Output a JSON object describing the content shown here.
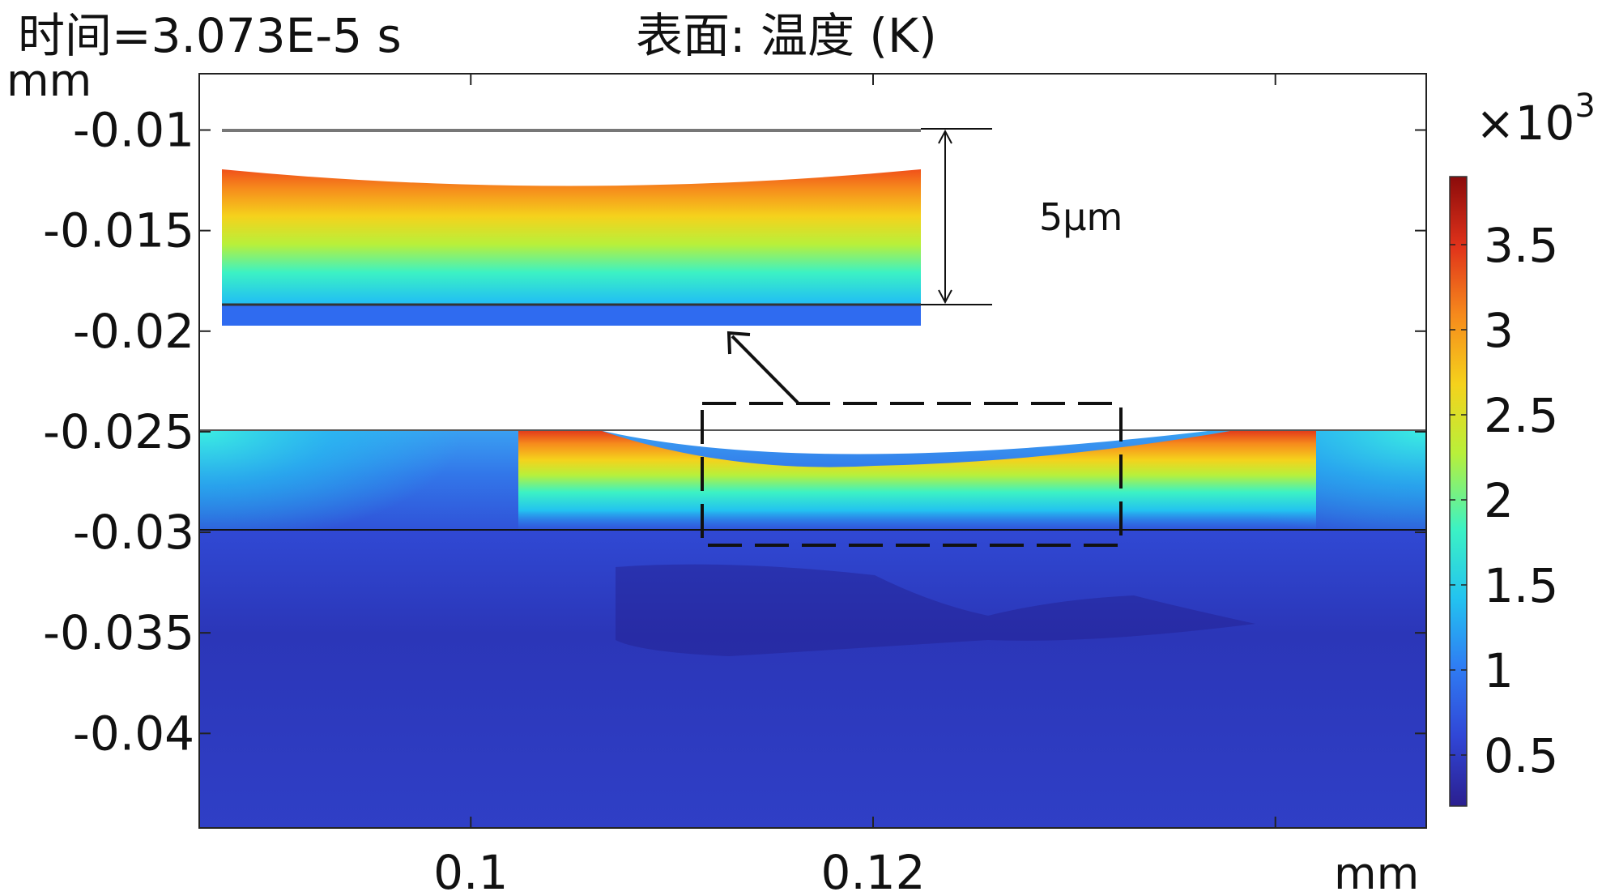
{
  "chart_data": {
    "type": "heatmap",
    "title": "表面: 温度 (K)",
    "subtitle": "时间=3.073E-5 s",
    "xlabel": "mm",
    "ylabel": "mm",
    "xlim": [
      0.0865,
      0.1475
    ],
    "ylim": [
      -0.0447,
      -0.0072
    ],
    "x_ticks": [
      0.1,
      0.12
    ],
    "y_ticks": [
      -0.01,
      -0.015,
      -0.02,
      -0.025,
      -0.03,
      -0.035,
      -0.04
    ],
    "grid": false,
    "colorbar": {
      "multiplier": "×10",
      "exponent": "3",
      "range": [
        0.2,
        3.9
      ],
      "ticks": [
        0.5,
        1,
        1.5,
        2,
        2.5,
        3,
        3.5
      ],
      "colormap": [
        "#2b1f8f",
        "#3046d6",
        "#2f7cf3",
        "#23c3f0",
        "#3cf2c4",
        "#b8f03a",
        "#f5d21c",
        "#f68a1c",
        "#e0321a",
        "#8a0b0b"
      ]
    },
    "layer_boundaries_mm": [
      -0.025,
      -0.03
    ],
    "melt_pool": {
      "x_range": [
        0.1065,
        0.1365
      ],
      "deepest_point": [
        0.1215,
        -0.0268
      ],
      "surface_temperature_K": 3200
    },
    "inset": {
      "label": "5μm",
      "zoom_box_x": [
        0.1125,
        0.1335
      ],
      "zoom_box_y": [
        -0.0239,
        -0.0308
      ]
    }
  }
}
